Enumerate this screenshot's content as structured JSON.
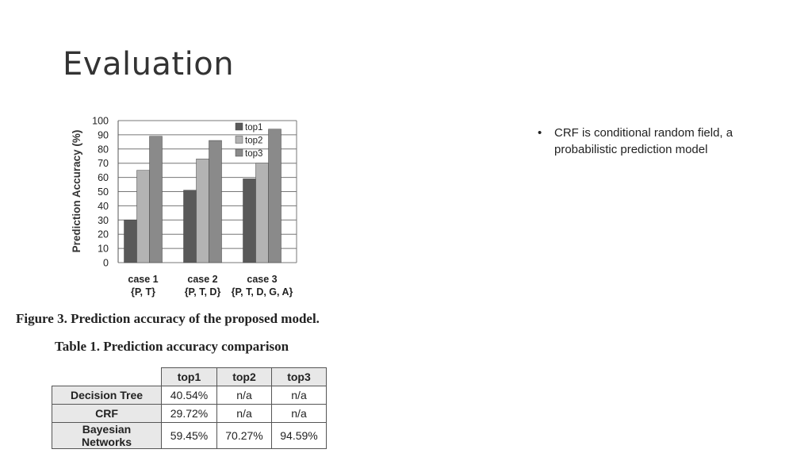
{
  "slide": {
    "title": "Evaluation"
  },
  "bullets": [
    {
      "text": "CRF is conditional random field, a probabilistic prediction model"
    }
  ],
  "figure": {
    "caption": "Figure 3. Prediction accuracy of the proposed model."
  },
  "chart_data": {
    "type": "bar",
    "xlabel": "",
    "ylabel": "Prediction Accuracy (%)",
    "ylim": [
      0,
      100
    ],
    "yticks": [
      0,
      10,
      20,
      30,
      40,
      50,
      60,
      70,
      80,
      90,
      100
    ],
    "categories": [
      "case 1\n{P, T}",
      "case 2\n{P, T, D}",
      "case 3\n{P, T, D, G, A}"
    ],
    "category_lines": [
      [
        "case 1",
        "{P, T}"
      ],
      [
        "case 2",
        "{P, T, D}"
      ],
      [
        "case 3",
        "{P, T, D, G, A}"
      ]
    ],
    "series": [
      {
        "name": "top1",
        "color": "#595959",
        "values": [
          30,
          51,
          59
        ]
      },
      {
        "name": "top2",
        "color": "#b3b3b3",
        "values": [
          65,
          73,
          70
        ]
      },
      {
        "name": "top3",
        "color": "#8a8a8a",
        "values": [
          89,
          86,
          94
        ]
      }
    ],
    "grid": "horizontal",
    "legend": "top-right"
  },
  "table": {
    "caption": "Table 1. Prediction accuracy comparison",
    "headers": [
      "top1",
      "top2",
      "top3"
    ],
    "rows": [
      {
        "label": "Decision Tree",
        "values": [
          "40.54%",
          "n/a",
          "n/a"
        ]
      },
      {
        "label": "CRF",
        "values": [
          "29.72%",
          "n/a",
          "n/a"
        ]
      },
      {
        "label": "Bayesian Networks",
        "values": [
          "59.45%",
          "70.27%",
          "94.59%"
        ]
      }
    ]
  }
}
